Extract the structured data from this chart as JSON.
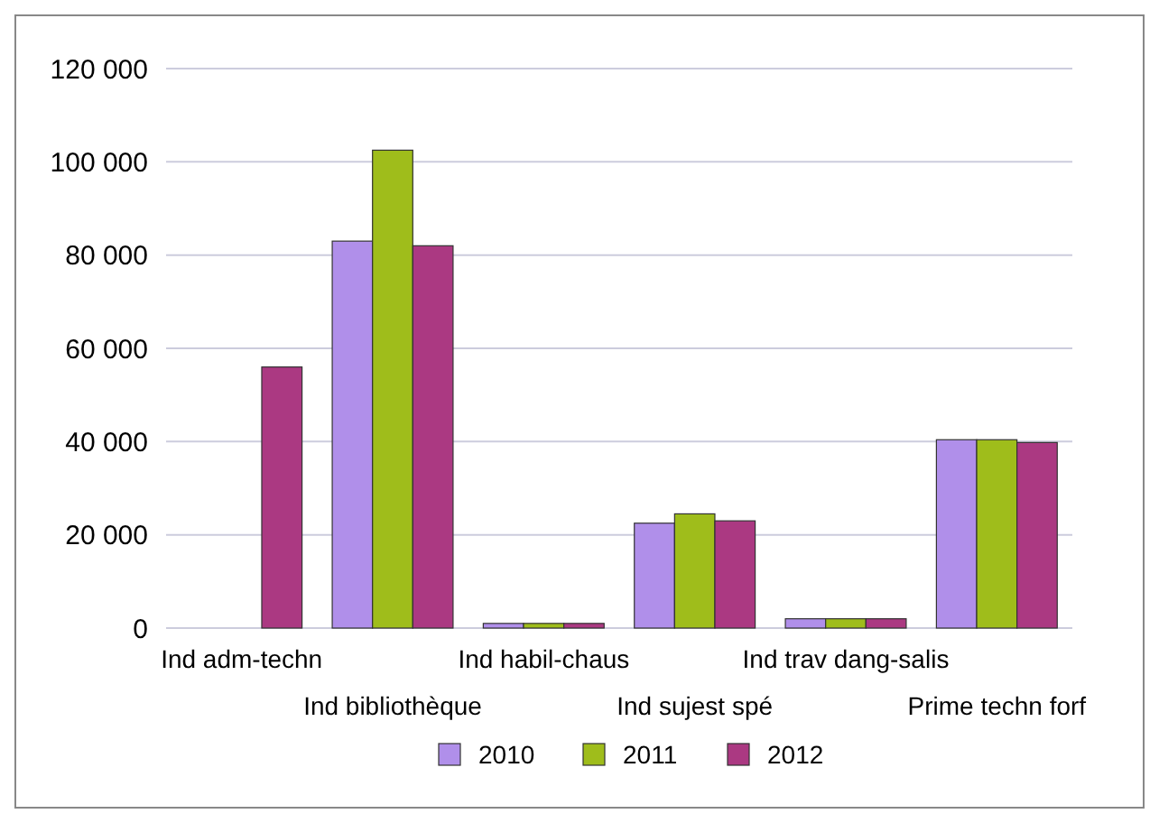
{
  "chart_data": {
    "type": "bar",
    "categories": [
      "Ind adm-techn",
      "Ind bibliothèque",
      "Ind habil-chaus",
      "Ind sujest spé",
      "Ind trav dang-salis",
      "Prime techn forf"
    ],
    "series": [
      {
        "name": "2010",
        "color": "#b08fea",
        "values": [
          null,
          83000,
          1000,
          22500,
          2000,
          40400
        ]
      },
      {
        "name": "2011",
        "color": "#9fbd1b",
        "values": [
          null,
          102500,
          1000,
          24500,
          2000,
          40400
        ]
      },
      {
        "name": "2012",
        "color": "#ab3982",
        "values": [
          56000,
          82000,
          1000,
          23000,
          2000,
          39800
        ]
      }
    ],
    "ylim": [
      0,
      120000
    ],
    "yticks": [
      {
        "value": 0,
        "label": "0"
      },
      {
        "value": 20000,
        "label": "20 000"
      },
      {
        "value": 40000,
        "label": "40 000"
      },
      {
        "value": 60000,
        "label": "60 000"
      },
      {
        "value": 80000,
        "label": "80 000"
      },
      {
        "value": 100000,
        "label": "100 000"
      },
      {
        "value": 120000,
        "label": "120 000"
      }
    ],
    "grid": "y",
    "legend": "bottom"
  }
}
